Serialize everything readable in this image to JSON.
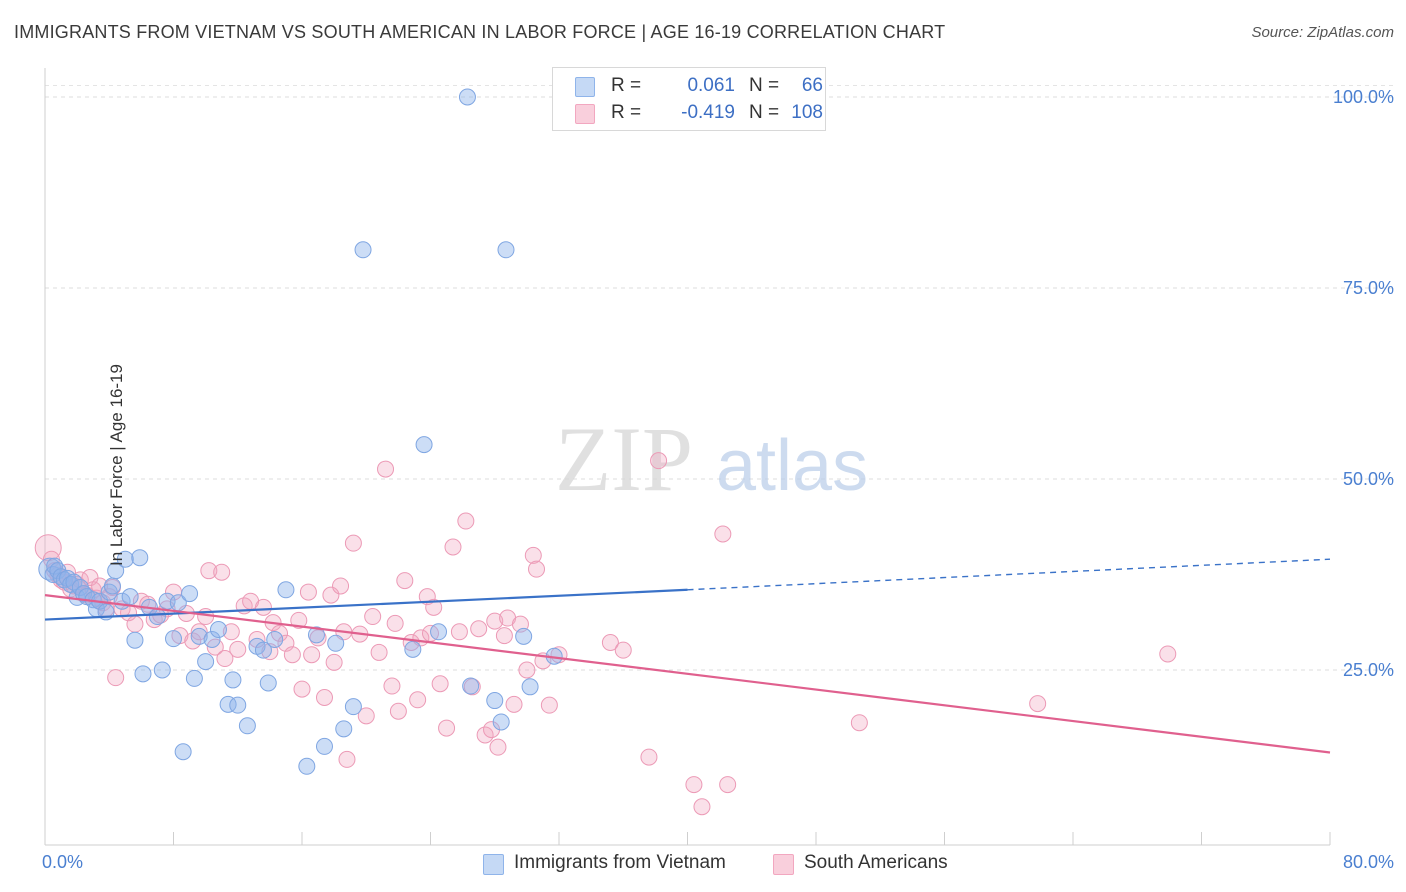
{
  "header": {
    "title": "IMMIGRANTS FROM VIETNAM VS SOUTH AMERICAN IN LABOR FORCE | AGE 16-19 CORRELATION CHART",
    "source": "Source: ZipAtlas.com"
  },
  "watermark": {
    "zip": "ZIP",
    "atlas": "atlas"
  },
  "legend": {
    "r_label": "R =",
    "n_label": "N =",
    "rows": [
      {
        "r": "0.061",
        "n": "66",
        "color": "#8fb4ea"
      },
      {
        "r": "-0.419",
        "n": "108",
        "color": "#f2a7c0"
      }
    ]
  },
  "chart_data": {
    "type": "scatter",
    "title": "IMMIGRANTS FROM VIETNAM VS SOUTH AMERICAN IN LABOR FORCE | AGE 16-19 CORRELATION CHART",
    "xlabel": "",
    "ylabel": "In Labor Force | Age 16-19",
    "xlim": [
      0,
      80
    ],
    "ylim": [
      0,
      102
    ],
    "x_tick_labels": [
      "0.0%",
      "80.0%"
    ],
    "y_ticks": [
      25,
      50,
      75,
      100
    ],
    "y_tick_labels": [
      "25.0%",
      "50.0%",
      "75.0%",
      "100.0%"
    ],
    "grid": true,
    "legend_position": "bottom",
    "series": [
      {
        "name": "Immigrants from Vietnam",
        "color": "#8fb4ea",
        "line_color": "#3a72c8",
        "trend": {
          "x0": 0,
          "y0": 31.6,
          "x1": 40,
          "y1": 35.5,
          "dashed_to_x": 80,
          "dashed_to_y": 39.5
        },
        "points": [
          [
            0.3,
            38.2
          ],
          [
            0.5,
            37.5
          ],
          [
            0.6,
            38.6
          ],
          [
            0.8,
            38.0
          ],
          [
            1.0,
            37.2
          ],
          [
            1.2,
            36.8
          ],
          [
            1.4,
            37.0
          ],
          [
            1.6,
            36.2
          ],
          [
            1.8,
            36.5
          ],
          [
            2.0,
            34.5
          ],
          [
            2.2,
            35.8
          ],
          [
            2.4,
            35.0
          ],
          [
            2.6,
            34.6
          ],
          [
            3.0,
            34.2
          ],
          [
            3.2,
            33.0
          ],
          [
            3.4,
            34.0
          ],
          [
            3.8,
            32.6
          ],
          [
            4.0,
            35.2
          ],
          [
            4.2,
            36.0
          ],
          [
            4.4,
            38.0
          ],
          [
            4.8,
            34.0
          ],
          [
            5.0,
            39.5
          ],
          [
            5.3,
            34.6
          ],
          [
            5.6,
            28.9
          ],
          [
            5.9,
            39.7
          ],
          [
            6.1,
            24.5
          ],
          [
            6.5,
            33.2
          ],
          [
            7.0,
            32.0
          ],
          [
            7.3,
            25.0
          ],
          [
            7.6,
            34.0
          ],
          [
            8.0,
            29.1
          ],
          [
            8.3,
            33.8
          ],
          [
            8.6,
            14.3
          ],
          [
            9.0,
            35.0
          ],
          [
            9.3,
            23.9
          ],
          [
            9.6,
            29.4
          ],
          [
            10.0,
            26.1
          ],
          [
            10.4,
            29.0
          ],
          [
            10.8,
            30.3
          ],
          [
            11.4,
            20.5
          ],
          [
            11.7,
            23.7
          ],
          [
            12.0,
            20.4
          ],
          [
            12.6,
            17.7
          ],
          [
            13.2,
            28.1
          ],
          [
            13.6,
            27.6
          ],
          [
            13.9,
            23.3
          ],
          [
            14.3,
            29.0
          ],
          [
            15.0,
            35.5
          ],
          [
            16.3,
            12.4
          ],
          [
            16.9,
            29.6
          ],
          [
            17.4,
            15.0
          ],
          [
            18.1,
            28.5
          ],
          [
            18.6,
            17.3
          ],
          [
            19.2,
            20.2
          ],
          [
            19.8,
            80.0
          ],
          [
            22.9,
            27.7
          ],
          [
            23.6,
            54.5
          ],
          [
            24.5,
            30.0
          ],
          [
            26.3,
            100.0
          ],
          [
            26.5,
            22.9
          ],
          [
            28.0,
            21.0
          ],
          [
            28.4,
            18.2
          ],
          [
            28.7,
            80.0
          ],
          [
            29.8,
            29.4
          ],
          [
            30.2,
            22.8
          ],
          [
            31.7,
            26.8
          ]
        ]
      },
      {
        "name": "South Americans",
        "color": "#f2a7c0",
        "line_color": "#e0608e",
        "trend": {
          "x0": 0,
          "y0": 34.8,
          "x1": 80,
          "y1": 14.2
        },
        "points": [
          [
            0.2,
            41.0
          ],
          [
            0.4,
            39.5
          ],
          [
            0.6,
            38.0
          ],
          [
            0.8,
            37.4
          ],
          [
            1.0,
            36.8
          ],
          [
            1.2,
            36.5
          ],
          [
            1.4,
            37.8
          ],
          [
            1.6,
            35.6
          ],
          [
            1.8,
            36.0
          ],
          [
            2.0,
            36.2
          ],
          [
            2.2,
            36.8
          ],
          [
            2.4,
            35.0
          ],
          [
            2.6,
            34.8
          ],
          [
            2.8,
            37.1
          ],
          [
            3.0,
            35.5
          ],
          [
            3.2,
            34.4
          ],
          [
            3.4,
            36.0
          ],
          [
            3.6,
            33.8
          ],
          [
            3.8,
            33.0
          ],
          [
            4.0,
            34.6
          ],
          [
            4.2,
            35.8
          ],
          [
            4.4,
            24.0
          ],
          [
            4.8,
            33.0
          ],
          [
            5.2,
            32.5
          ],
          [
            5.6,
            31.0
          ],
          [
            6.0,
            34.0
          ],
          [
            6.4,
            33.6
          ],
          [
            6.8,
            31.6
          ],
          [
            7.2,
            32.2
          ],
          [
            7.6,
            33.0
          ],
          [
            8.0,
            35.2
          ],
          [
            8.4,
            29.5
          ],
          [
            8.8,
            32.4
          ],
          [
            9.2,
            28.8
          ],
          [
            9.6,
            30.0
          ],
          [
            10.0,
            32.0
          ],
          [
            10.2,
            38.0
          ],
          [
            10.6,
            28.0
          ],
          [
            11.0,
            37.8
          ],
          [
            11.2,
            26.5
          ],
          [
            11.6,
            30.0
          ],
          [
            12.0,
            27.7
          ],
          [
            12.4,
            33.4
          ],
          [
            12.8,
            34.0
          ],
          [
            13.2,
            29.0
          ],
          [
            13.6,
            33.2
          ],
          [
            14.0,
            27.4
          ],
          [
            14.2,
            31.2
          ],
          [
            14.6,
            29.8
          ],
          [
            15.0,
            28.5
          ],
          [
            15.4,
            27.0
          ],
          [
            15.8,
            31.5
          ],
          [
            16.0,
            22.5
          ],
          [
            16.4,
            35.2
          ],
          [
            16.6,
            27.0
          ],
          [
            17.0,
            29.2
          ],
          [
            17.4,
            21.4
          ],
          [
            17.8,
            34.8
          ],
          [
            18.0,
            26.0
          ],
          [
            18.4,
            36.0
          ],
          [
            18.6,
            30.0
          ],
          [
            18.8,
            13.3
          ],
          [
            19.2,
            41.6
          ],
          [
            19.6,
            29.7
          ],
          [
            20.0,
            19.0
          ],
          [
            20.4,
            32.0
          ],
          [
            20.8,
            27.3
          ],
          [
            21.2,
            51.3
          ],
          [
            21.6,
            22.9
          ],
          [
            21.8,
            31.1
          ],
          [
            22.0,
            19.6
          ],
          [
            22.4,
            36.7
          ],
          [
            22.8,
            28.6
          ],
          [
            23.2,
            21.1
          ],
          [
            23.4,
            29.2
          ],
          [
            23.8,
            34.6
          ],
          [
            24.0,
            29.8
          ],
          [
            24.2,
            33.2
          ],
          [
            24.6,
            23.2
          ],
          [
            25.0,
            17.4
          ],
          [
            25.4,
            41.1
          ],
          [
            25.8,
            30.0
          ],
          [
            26.2,
            44.5
          ],
          [
            26.6,
            22.8
          ],
          [
            27.0,
            30.4
          ],
          [
            27.4,
            16.5
          ],
          [
            27.8,
            17.2
          ],
          [
            28.0,
            31.4
          ],
          [
            28.2,
            14.9
          ],
          [
            28.6,
            29.5
          ],
          [
            28.8,
            31.8
          ],
          [
            29.2,
            20.5
          ],
          [
            29.6,
            31.0
          ],
          [
            30.0,
            25.0
          ],
          [
            30.4,
            40.0
          ],
          [
            30.6,
            38.2
          ],
          [
            31.0,
            26.2
          ],
          [
            31.4,
            20.4
          ],
          [
            32.0,
            27.0
          ],
          [
            35.2,
            28.6
          ],
          [
            36.0,
            27.6
          ],
          [
            37.6,
            13.6
          ],
          [
            38.2,
            52.4
          ],
          [
            40.4,
            10.0
          ],
          [
            40.9,
            7.1
          ],
          [
            42.2,
            42.8
          ],
          [
            50.7,
            18.1
          ],
          [
            61.8,
            20.6
          ],
          [
            69.9,
            27.1
          ],
          [
            42.5,
            10.0
          ]
        ]
      }
    ]
  }
}
